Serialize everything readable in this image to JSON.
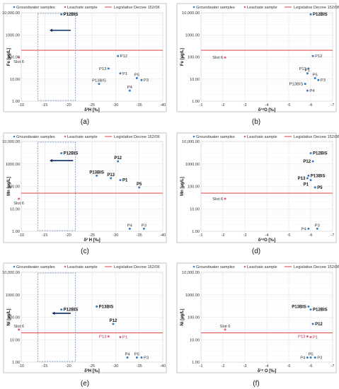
{
  "colors": {
    "groundwater": "#3b7dc4",
    "leachate": "#e0607a",
    "decree": "#d62b2b",
    "arrow": "#0d2a66",
    "box": "#6c8ebf"
  },
  "chart_data": [
    {
      "id": "a",
      "type": "scatter",
      "caption": "(a)",
      "xlabel": "δ²H [‰]",
      "ylabel": "Fe [µg/L]",
      "xlim": [
        -10,
        -40
      ],
      "ylog": true,
      "ylim": [
        1,
        10000
      ],
      "xticks": [
        -10,
        -15,
        -20,
        -25,
        -30,
        -35,
        -40
      ],
      "xticklabels": [
        "-10",
        "-15",
        "-20",
        "-25",
        "-30",
        "-35",
        "-40"
      ],
      "yticks": [
        1,
        10,
        100,
        1000,
        10000
      ],
      "yticklabels": [
        "1.00",
        "10.00",
        "100.00",
        "1000.00",
        "10,000.00"
      ],
      "legend": {
        "groundwater": "Groundwater samples",
        "leachate": "Leachate sample",
        "decree": "Legislative Decree 152/06"
      },
      "threshold": 200,
      "box": {
        "x0": -13.5,
        "x1": -21.5
      },
      "arrow": {
        "x_from": -20.5,
        "x_to": -16.0,
        "y": 1600
      },
      "points": [
        {
          "label": "Slot 6",
          "x": -9.5,
          "y": 95,
          "series": "leachate",
          "anchor": "below"
        },
        {
          "label": "P12BIS",
          "x": -18.5,
          "y": 8500,
          "series": "groundwater",
          "bold": true,
          "anchor": "right"
        },
        {
          "label": "P12",
          "x": -30.5,
          "y": 110,
          "series": "groundwater",
          "anchor": "right"
        },
        {
          "label": "P13",
          "x": -28.5,
          "y": 30,
          "series": "groundwater",
          "anchor": "left"
        },
        {
          "label": "P1",
          "x": -31.0,
          "y": 18,
          "series": "groundwater",
          "anchor": "right"
        },
        {
          "label": "P13BIS",
          "x": -26.5,
          "y": 6,
          "series": "groundwater",
          "anchor": "above"
        },
        {
          "label": "P5",
          "x": -34.5,
          "y": 11,
          "series": "groundwater",
          "anchor": "above"
        },
        {
          "label": "P3",
          "x": -35.5,
          "y": 9,
          "series": "groundwater",
          "anchor": "right"
        },
        {
          "label": "P4",
          "x": -33.0,
          "y": 3,
          "series": "groundwater",
          "anchor": "above"
        }
      ]
    },
    {
      "id": "b",
      "type": "scatter",
      "caption": "(b)",
      "xlabel": "δ¹⁸O [‰]",
      "ylabel": "Fe [µg/L]",
      "xlim": [
        -1,
        -7
      ],
      "ylog": true,
      "ylim": [
        1,
        10000
      ],
      "xticks": [
        -1,
        -2,
        -3,
        -4,
        -5,
        -6,
        -7
      ],
      "xticklabels": [
        "-1",
        "-2",
        "-3",
        "-4",
        "-5",
        "-6",
        "-7"
      ],
      "yticks": [
        1,
        10,
        100,
        1000,
        10000
      ],
      "yticklabels": [
        "1.00",
        "10.00",
        "100.00",
        "1000.00",
        "10,000.00"
      ],
      "legend": {
        "groundwater": "Groundwater samples",
        "leachate": "Leachate sample",
        "decree": "Legislative Decree 152/06"
      },
      "threshold": 200,
      "points": [
        {
          "label": "Slot 6",
          "x": -2.1,
          "y": 95,
          "series": "leachate",
          "anchor": "left"
        },
        {
          "label": "P12BIS",
          "x": -6.0,
          "y": 8500,
          "series": "groundwater",
          "bold": true,
          "anchor": "right"
        },
        {
          "label": "P12",
          "x": -6.1,
          "y": 110,
          "series": "groundwater",
          "anchor": "right"
        },
        {
          "label": "P13",
          "x": -5.9,
          "y": 30,
          "series": "groundwater",
          "anchor": "left"
        },
        {
          "label": "P1",
          "x": -5.85,
          "y": 18,
          "series": "groundwater",
          "anchor": "above"
        },
        {
          "label": "P5",
          "x": -6.2,
          "y": 11,
          "series": "groundwater",
          "anchor": "above"
        },
        {
          "label": "P3",
          "x": -6.35,
          "y": 9,
          "series": "groundwater",
          "anchor": "right"
        },
        {
          "label": "P13BIS",
          "x": -5.75,
          "y": 6,
          "series": "groundwater",
          "anchor": "left"
        },
        {
          "label": "P4",
          "x": -5.85,
          "y": 3,
          "series": "groundwater",
          "anchor": "right"
        }
      ]
    },
    {
      "id": "c",
      "type": "scatter",
      "caption": "(c)",
      "xlabel": "δ² H [‰]",
      "ylabel": "Mn [µg/L]",
      "xlim": [
        -10,
        -40
      ],
      "ylog": true,
      "ylim": [
        1,
        10000
      ],
      "xticks": [
        -10,
        -15,
        -20,
        -25,
        -30,
        -35,
        -40
      ],
      "xticklabels": [
        "-10",
        "-15",
        "-20",
        "-25",
        "-30",
        "-35",
        "-40"
      ],
      "yticks": [
        1,
        10,
        100,
        1000,
        10000
      ],
      "yticklabels": [
        "1.00",
        "10.00",
        "100.00",
        "1000.00",
        "10,000.00"
      ],
      "legend": {
        "groundwater": "Groundwater samples",
        "leachate": "Leachate sample",
        "decree": "Legislative Decree 152/06"
      },
      "threshold": 50,
      "box": {
        "x0": -13.5,
        "x1": -21.5
      },
      "arrow": {
        "x_from": -21.0,
        "x_to": -16.0,
        "y": 1400
      },
      "points": [
        {
          "label": "Slot 6",
          "x": -9.5,
          "y": 28,
          "series": "leachate",
          "anchor": "below"
        },
        {
          "label": "P12BIS",
          "x": -18.5,
          "y": 3000,
          "series": "groundwater",
          "bold": true,
          "anchor": "right"
        },
        {
          "label": "P12",
          "x": -30.5,
          "y": 1300,
          "series": "groundwater",
          "bold": true,
          "anchor": "above"
        },
        {
          "label": "P13BIS",
          "x": -26.0,
          "y": 300,
          "series": "groundwater",
          "bold": true,
          "anchor": "above"
        },
        {
          "label": "P13",
          "x": -29.0,
          "y": 230,
          "series": "groundwater",
          "bold": true,
          "anchor": "above"
        },
        {
          "label": "P1",
          "x": -31.0,
          "y": 190,
          "series": "groundwater",
          "bold": true,
          "anchor": "right"
        },
        {
          "label": "P5",
          "x": -35.0,
          "y": 90,
          "series": "groundwater",
          "bold": true,
          "anchor": "above"
        },
        {
          "label": "P4",
          "x": -33.0,
          "y": 1.3,
          "series": "groundwater",
          "anchor": "above"
        },
        {
          "label": "P3",
          "x": -36.0,
          "y": 1.3,
          "series": "groundwater",
          "anchor": "above"
        }
      ]
    },
    {
      "id": "d",
      "type": "scatter",
      "caption": "(d)",
      "xlabel": "δ¹⁸O [‰]",
      "ylabel": "Mn [µg/L]",
      "xlim": [
        -1,
        -7
      ],
      "ylog": true,
      "ylim": [
        1,
        10000
      ],
      "xticks": [
        -1,
        -2,
        -3,
        -4,
        -5,
        -6,
        -7
      ],
      "xticklabels": [
        "-1",
        "-2",
        "-3",
        "-4",
        "-5",
        "-6",
        "-7"
      ],
      "yticks": [
        1,
        10,
        100,
        1000,
        10000
      ],
      "yticklabels": [
        "1.00",
        "10.00",
        "100.00",
        "1000.00",
        "10,000.00"
      ],
      "legend": {
        "groundwater": "Groundwater samples",
        "leachate": "Leachate sample",
        "decree": "Legislative Decree 152/06"
      },
      "threshold": 50,
      "points": [
        {
          "label": "Slot 6",
          "x": -2.1,
          "y": 28,
          "series": "leachate",
          "anchor": "left"
        },
        {
          "label": "P12BIS",
          "x": -6.0,
          "y": 3000,
          "series": "groundwater",
          "bold": true,
          "anchor": "right"
        },
        {
          "label": "P12",
          "x": -6.1,
          "y": 1300,
          "series": "groundwater",
          "bold": true,
          "anchor": "left"
        },
        {
          "label": "P13BIS",
          "x": -5.9,
          "y": 300,
          "series": "groundwater",
          "bold": true,
          "anchor": "right"
        },
        {
          "label": "P13",
          "x": -5.85,
          "y": 230,
          "series": "groundwater",
          "bold": true,
          "anchor": "left"
        },
        {
          "label": "P1",
          "x": -6.0,
          "y": 190,
          "series": "groundwater",
          "bold": true,
          "anchor": "below-left"
        },
        {
          "label": "P5",
          "x": -6.2,
          "y": 90,
          "series": "groundwater",
          "bold": true,
          "anchor": "right"
        },
        {
          "label": "P4",
          "x": -5.9,
          "y": 1.3,
          "series": "groundwater",
          "anchor": "left"
        },
        {
          "label": "P3",
          "x": -6.3,
          "y": 1.3,
          "series": "groundwater",
          "anchor": "above"
        }
      ]
    },
    {
      "id": "e",
      "type": "scatter",
      "caption": "(e)",
      "xlabel": "δ²H [‰]",
      "ylabel": "Ni [µg/L]",
      "xlim": [
        -10,
        -40
      ],
      "ylog": true,
      "ylim": [
        1,
        10000
      ],
      "xticks": [
        -10,
        -15,
        -20,
        -25,
        -30,
        -35,
        -40
      ],
      "xticklabels": [
        "-10",
        "-15",
        "-20",
        "-25",
        "-30",
        "-35",
        "-40"
      ],
      "yticks": [
        1,
        10,
        100,
        1000,
        10000
      ],
      "yticklabels": [
        "1.00",
        "10.00",
        "100.00",
        "1000.00",
        "10,000.00"
      ],
      "legend": {
        "groundwater": "Groundwater samples",
        "leachate": "Leachate sample",
        "decree": "Legislative Decree 152/06"
      },
      "threshold": 20,
      "box": {
        "x0": -13.5,
        "x1": -21.5
      },
      "arrow": {
        "x_from": -20.5,
        "x_to": -16.5,
        "y": 150
      },
      "points": [
        {
          "label": "Slot 6",
          "x": -9.5,
          "y": 28,
          "series": "leachate",
          "anchor": "above"
        },
        {
          "label": "P12BIS",
          "x": -18.5,
          "y": 220,
          "series": "groundwater",
          "bold": true,
          "anchor": "right"
        },
        {
          "label": "P13BIS",
          "x": -26.0,
          "y": 300,
          "series": "groundwater",
          "bold": true,
          "anchor": "right"
        },
        {
          "label": "P12",
          "x": -29.5,
          "y": 50,
          "series": "groundwater",
          "bold": true,
          "anchor": "above"
        },
        {
          "label": "P13",
          "x": -28.5,
          "y": 14,
          "series": "leachate",
          "anchor": "left"
        },
        {
          "label": "P1",
          "x": -31.0,
          "y": 13,
          "series": "leachate",
          "anchor": "right"
        },
        {
          "label": "P4",
          "x": -32.5,
          "y": 1.6,
          "series": "groundwater",
          "anchor": "above"
        },
        {
          "label": "P5",
          "x": -34.5,
          "y": 1.6,
          "series": "groundwater",
          "anchor": "above"
        },
        {
          "label": "P3",
          "x": -35.5,
          "y": 1.6,
          "series": "groundwater",
          "anchor": "right"
        }
      ]
    },
    {
      "id": "f",
      "type": "scatter",
      "caption": "(f)",
      "xlabel": "δ¹⁸ O [‰]",
      "ylabel": "Ni [µg/L]",
      "xlim": [
        -1,
        -7
      ],
      "ylog": true,
      "ylim": [
        1,
        10000
      ],
      "xticks": [
        -1,
        -2,
        -3,
        -4,
        -5,
        -6,
        -7
      ],
      "xticklabels": [
        "-1",
        "-2",
        "-3",
        "-4",
        "-5",
        "-6",
        "-7"
      ],
      "yticks": [
        1,
        10,
        100,
        1000,
        10000
      ],
      "yticklabels": [
        "1.00",
        "10.00",
        "100.00",
        "1000.00",
        "10,000.00"
      ],
      "legend": {
        "groundwater": "Groundwater samples",
        "leachate": "Leachate sample",
        "decree": "Legislative Decree 152/06"
      },
      "threshold": 20,
      "points": [
        {
          "label": "Slot 6",
          "x": -2.1,
          "y": 28,
          "series": "leachate",
          "anchor": "above"
        },
        {
          "label": "P13BIS",
          "x": -5.9,
          "y": 300,
          "series": "groundwater",
          "bold": true,
          "anchor": "left"
        },
        {
          "label": "P12BIS",
          "x": -6.0,
          "y": 220,
          "series": "groundwater",
          "bold": true,
          "anchor": "right"
        },
        {
          "label": "P12",
          "x": -6.1,
          "y": 50,
          "series": "groundwater",
          "bold": true,
          "anchor": "right"
        },
        {
          "label": "P13",
          "x": -5.85,
          "y": 14,
          "series": "leachate",
          "anchor": "left"
        },
        {
          "label": "P1",
          "x": -6.0,
          "y": 13,
          "series": "leachate",
          "anchor": "right"
        },
        {
          "label": "P4",
          "x": -5.85,
          "y": 1.6,
          "series": "groundwater",
          "anchor": "left"
        },
        {
          "label": "P5",
          "x": -6.0,
          "y": 1.6,
          "series": "groundwater",
          "anchor": "above"
        },
        {
          "label": "P3",
          "x": -6.2,
          "y": 1.6,
          "series": "groundwater",
          "anchor": "right"
        }
      ]
    }
  ]
}
